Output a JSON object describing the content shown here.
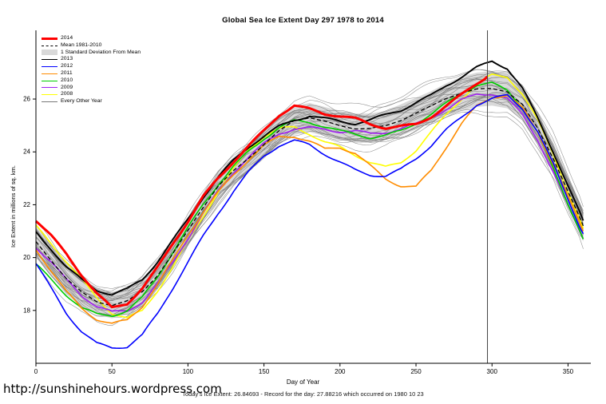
{
  "chart_data": {
    "type": "line",
    "title": "Global Sea Ice Extent Day 297 1978 to 2014",
    "xlabel": "Day of Year",
    "ylabel": "Ice Extent in millions of sq. km.",
    "footer": "Today's Ice Extent: 26.84693 - Record for the day: 27.88216 which occurred on 1980 10 23",
    "source_url": "http://sunshinehours.wordpress.com",
    "xlim": [
      0,
      365
    ],
    "ylim": [
      16.0,
      28.6
    ],
    "xticks": [
      0,
      50,
      100,
      150,
      200,
      250,
      300,
      350
    ],
    "yticks": [
      18,
      20,
      22,
      24,
      26
    ],
    "grid": false,
    "legend_position": "top-left",
    "marker_line_x": 297,
    "x": [
      0,
      10,
      20,
      30,
      40,
      50,
      60,
      70,
      80,
      90,
      100,
      110,
      120,
      130,
      140,
      150,
      160,
      170,
      180,
      190,
      200,
      210,
      220,
      230,
      240,
      250,
      260,
      270,
      280,
      290,
      300,
      310,
      320,
      330,
      340,
      350,
      360
    ],
    "mean": {
      "label": "Mean 1981-2010",
      "color": "#000000",
      "values": [
        20.6,
        19.9,
        19.2,
        18.7,
        18.35,
        18.2,
        18.35,
        18.7,
        19.3,
        20.1,
        21.0,
        21.9,
        22.7,
        23.3,
        23.8,
        24.3,
        24.8,
        25.2,
        25.3,
        25.15,
        25.0,
        24.9,
        24.9,
        25.0,
        25.2,
        25.45,
        25.7,
        26.0,
        26.2,
        26.35,
        26.4,
        26.3,
        25.8,
        24.9,
        23.8,
        22.5,
        21.2
      ]
    },
    "sd_band": {
      "label": "1 Standard Deviation From Mean",
      "color": "#d9d9d9",
      "values": [
        0.6,
        0.6,
        0.6,
        0.55,
        0.5,
        0.5,
        0.5,
        0.5,
        0.5,
        0.5,
        0.5,
        0.5,
        0.5,
        0.5,
        0.5,
        0.5,
        0.5,
        0.55,
        0.55,
        0.55,
        0.55,
        0.55,
        0.55,
        0.55,
        0.6,
        0.6,
        0.6,
        0.6,
        0.65,
        0.65,
        0.65,
        0.65,
        0.6,
        0.6,
        0.6,
        0.6,
        0.6
      ]
    },
    "series": [
      {
        "name": "2014",
        "color": "#ff0000",
        "x": [
          0,
          10,
          20,
          30,
          40,
          50,
          60,
          70,
          80,
          90,
          100,
          110,
          120,
          130,
          140,
          150,
          160,
          170,
          180,
          190,
          200,
          210,
          220,
          230,
          240,
          250,
          260,
          270,
          280,
          290,
          297
        ],
        "values": [
          21.4,
          20.8,
          20.1,
          19.3,
          18.6,
          18.1,
          18.3,
          18.9,
          19.7,
          20.6,
          21.4,
          22.3,
          23.0,
          23.6,
          24.2,
          24.8,
          25.4,
          25.75,
          25.6,
          25.4,
          25.3,
          25.2,
          25.0,
          24.9,
          25.0,
          25.1,
          25.4,
          25.8,
          26.2,
          26.6,
          26.84693
        ]
      },
      {
        "name": "2013",
        "color": "#000000",
        "values": [
          21.0,
          20.4,
          19.7,
          19.2,
          18.8,
          18.6,
          18.8,
          19.2,
          19.9,
          20.7,
          21.5,
          22.3,
          23.0,
          23.6,
          24.1,
          24.5,
          24.9,
          25.2,
          25.4,
          25.3,
          25.2,
          25.1,
          25.2,
          25.4,
          25.6,
          25.9,
          26.2,
          26.6,
          26.9,
          27.2,
          27.4,
          27.1,
          26.3,
          25.2,
          24.0,
          22.7,
          21.4
        ]
      },
      {
        "name": "2012",
        "color": "#0000ff",
        "values": [
          19.8,
          18.9,
          18.0,
          17.3,
          16.8,
          16.6,
          16.6,
          17.0,
          17.8,
          18.8,
          19.8,
          20.8,
          21.7,
          22.5,
          23.2,
          23.8,
          24.2,
          24.4,
          24.3,
          24.0,
          23.7,
          23.4,
          23.2,
          23.1,
          23.3,
          23.7,
          24.2,
          24.8,
          25.3,
          25.8,
          26.0,
          26.1,
          25.6,
          24.7,
          23.5,
          22.2,
          20.9
        ]
      },
      {
        "name": "2011",
        "color": "#ff8c00",
        "values": [
          20.3,
          19.5,
          18.7,
          18.1,
          17.7,
          17.5,
          17.6,
          18.1,
          18.9,
          19.8,
          20.8,
          21.7,
          22.5,
          23.2,
          23.8,
          24.3,
          24.6,
          24.6,
          24.4,
          24.1,
          24.2,
          24.0,
          23.5,
          23.0,
          22.7,
          22.6,
          23.2,
          24.1,
          25.0,
          25.7,
          26.1,
          26.2,
          25.7,
          24.8,
          23.6,
          22.3,
          21.0
        ]
      },
      {
        "name": "2010",
        "color": "#00cd00",
        "values": [
          19.7,
          19.1,
          18.5,
          18.0,
          17.8,
          17.8,
          18.0,
          18.5,
          19.3,
          20.2,
          21.1,
          22.0,
          22.8,
          23.5,
          24.1,
          24.6,
          25.0,
          25.2,
          25.1,
          24.9,
          24.7,
          24.6,
          24.5,
          24.6,
          24.8,
          25.1,
          25.4,
          25.8,
          26.2,
          26.5,
          26.6,
          26.4,
          25.8,
          24.8,
          23.5,
          22.1,
          20.7
        ]
      },
      {
        "name": "2009",
        "color": "#a020f0",
        "values": [
          20.4,
          19.8,
          19.1,
          18.5,
          18.1,
          17.9,
          18.0,
          18.4,
          19.1,
          19.9,
          20.8,
          21.7,
          22.5,
          23.2,
          23.8,
          24.3,
          24.7,
          24.9,
          24.9,
          24.8,
          24.7,
          24.7,
          24.6,
          24.7,
          24.9,
          25.1,
          25.4,
          25.7,
          26.0,
          26.2,
          26.2,
          26.0,
          25.4,
          24.5,
          23.3,
          22.0,
          20.7
        ]
      },
      {
        "name": "2008",
        "color": "#ffff00",
        "values": [
          21.2,
          20.6,
          19.9,
          19.2,
          18.5,
          17.9,
          17.7,
          18.0,
          18.8,
          19.7,
          20.7,
          21.6,
          22.5,
          23.3,
          24.0,
          24.5,
          24.8,
          24.9,
          24.7,
          24.4,
          24.2,
          23.9,
          23.6,
          23.4,
          23.6,
          24.1,
          24.8,
          25.5,
          26.1,
          26.6,
          26.9,
          26.8,
          26.1,
          25.1,
          23.9,
          22.5,
          21.1
        ]
      }
    ],
    "other_years": {
      "label": "Every Other Year",
      "color": "#787878",
      "count": 26
    },
    "legend": [
      {
        "label": "2014",
        "color": "#ff0000",
        "swatch": "thick"
      },
      {
        "label": "Mean 1981-2010",
        "color": "#000000",
        "swatch": "dashed"
      },
      {
        "label": "1 Standard Deviation From Mean",
        "color": "#d9d9d9",
        "swatch": "box"
      },
      {
        "label": "2013",
        "color": "#000000",
        "swatch": "line"
      },
      {
        "label": "2012",
        "color": "#0000ff",
        "swatch": "line"
      },
      {
        "label": "2011",
        "color": "#ff8c00",
        "swatch": "line"
      },
      {
        "label": "2010",
        "color": "#00cd00",
        "swatch": "line"
      },
      {
        "label": "2009",
        "color": "#a020f0",
        "swatch": "line"
      },
      {
        "label": "2008",
        "color": "#ffff00",
        "swatch": "line"
      },
      {
        "label": "Every Other Year",
        "color": "#787878",
        "swatch": "thin"
      }
    ]
  }
}
